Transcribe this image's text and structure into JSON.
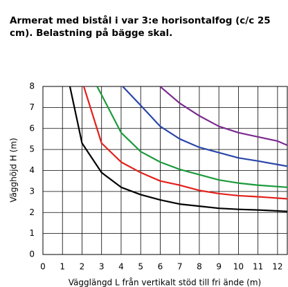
{
  "chart_data": {
    "type": "line",
    "title_lines": [
      "Armerat med bistål i var 3:e horisontalfog (c/c 25",
      "cm). Belastning på bägge skal."
    ],
    "x_label": "Vägglängd   L från vertikalt stöd till fri ände (m)",
    "y_label": "Vägghöjd    H   (m)",
    "xlim": [
      0,
      12.5
    ],
    "ylim": [
      0,
      8
    ],
    "xticks": [
      0,
      1,
      2,
      3,
      4,
      5,
      6,
      7,
      8,
      9,
      10,
      11,
      12
    ],
    "yticks": [
      0,
      1,
      2,
      3,
      4,
      5,
      6,
      7,
      8
    ],
    "grid": true,
    "series": [
      {
        "color": "#000000",
        "x": [
          1.38,
          2,
          3,
          4,
          5,
          6,
          7,
          8,
          9,
          10,
          11,
          12.5
        ],
        "values": [
          8,
          5.3,
          3.9,
          3.2,
          2.85,
          2.6,
          2.4,
          2.3,
          2.2,
          2.15,
          2.12,
          2.05
        ]
      },
      {
        "color": "#e3201b",
        "x": [
          2.09,
          3,
          4,
          5,
          6,
          7,
          8,
          9,
          10,
          11,
          12.5
        ],
        "values": [
          8,
          5.3,
          4.4,
          3.9,
          3.5,
          3.3,
          3.05,
          2.9,
          2.8,
          2.75,
          2.65
        ]
      },
      {
        "color": "#1a9a3a",
        "x": [
          2.77,
          3,
          4,
          5,
          6,
          7,
          8,
          9,
          10,
          11,
          12.5
        ],
        "values": [
          8,
          7.6,
          5.8,
          4.9,
          4.4,
          4.05,
          3.8,
          3.55,
          3.4,
          3.3,
          3.2
        ]
      },
      {
        "color": "#2a46a8",
        "x": [
          4.08,
          5,
          6,
          7,
          8,
          9,
          10,
          11,
          12.5
        ],
        "values": [
          8,
          7.1,
          6.1,
          5.5,
          5.1,
          4.85,
          4.6,
          4.45,
          4.2
        ]
      },
      {
        "color": "#7b2a8e",
        "x": [
          5.99,
          7,
          8,
          9,
          10,
          11,
          12,
          12.5
        ],
        "values": [
          8,
          7.2,
          6.6,
          6.1,
          5.8,
          5.6,
          5.4,
          5.2
        ]
      }
    ]
  }
}
